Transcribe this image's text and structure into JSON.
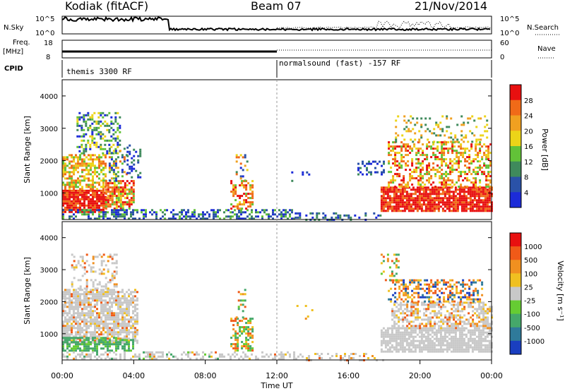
{
  "header": {
    "station": "Kodiak (fitACF)",
    "beam": "Beam 07",
    "date": "21/Nov/2014"
  },
  "strip_labels": {
    "nsky": "N.Sky",
    "nsky_ticks": [
      "10^5",
      "10^0"
    ],
    "nsearch": "N.Search",
    "nsearch_ticks": [
      "10^5",
      "10^0"
    ],
    "freq_line1": "Freq.",
    "freq_line2": "[MHz]",
    "freq_ticks": [
      "18",
      "8"
    ],
    "nave": "Nave",
    "nave_ticks": [
      "60",
      "0"
    ],
    "cpid": "CPID",
    "cpid_1": "themis 3300 RF",
    "cpid_2": "normalsound (fast) -157 RF"
  },
  "x_axis": {
    "ticks": [
      "00:00",
      "04:00",
      "08:00",
      "12:00",
      "16:00",
      "20:00",
      "00:00"
    ],
    "label": "Time UT"
  },
  "chart_data": [
    {
      "type": "heatmap",
      "panel": "power",
      "ylabel": "Slant Range [km]",
      "yticks": [
        "1000",
        "2000",
        "3000",
        "4000"
      ],
      "ylim": [
        180,
        4500
      ],
      "x_range_hours": [
        0,
        24
      ],
      "colorbar_label": "Power [dB]",
      "colorbar_ticks": [
        "4",
        "8",
        "12",
        "16",
        "20",
        "24",
        "28"
      ],
      "colorbar_colors": [
        "#1c2bd8",
        "#2a52a8",
        "#3f8a5c",
        "#62c238",
        "#ecd418",
        "#f0a020",
        "#f06a18",
        "#e81010"
      ]
    },
    {
      "type": "heatmap",
      "panel": "velocity",
      "ylabel": "Slant Range [km]",
      "yticks": [
        "1000",
        "2000",
        "3000",
        "4000"
      ],
      "ylim": [
        180,
        4500
      ],
      "x_range_hours": [
        0,
        24
      ],
      "colorbar_label": "Velocity [m s⁻¹]",
      "colorbar_ticks": [
        "1000",
        "500",
        "100",
        "25",
        "-25",
        "-100",
        "-500",
        "-1000"
      ],
      "colorbar_colors": [
        "#1a3fc0",
        "#2f7a9a",
        "#45a86a",
        "#66cc33",
        "#c8c8c8",
        "#f0c020",
        "#f09020",
        "#f05a18",
        "#e81010"
      ]
    }
  ],
  "colors": {
    "ground_scatter": "#c8c8c8"
  }
}
